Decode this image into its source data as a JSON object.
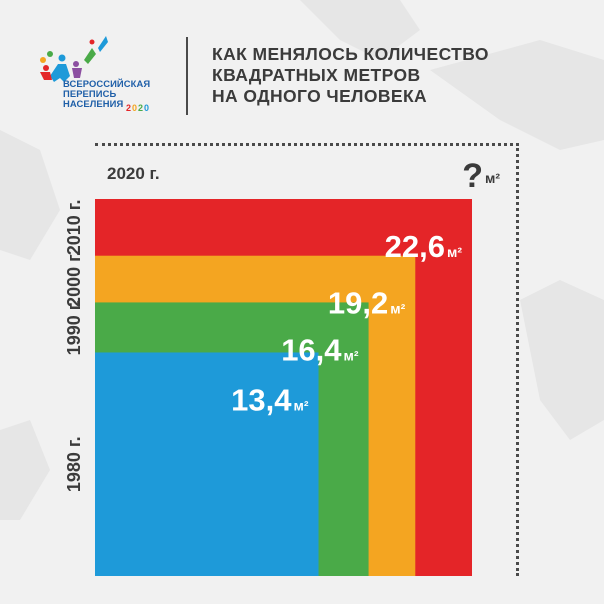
{
  "logo": {
    "lines": [
      "ВСЕРОССИЙСКАЯ",
      "ПЕРЕПИСЬ",
      "НАСЕЛЕНИЯ"
    ],
    "year": "2020"
  },
  "title": {
    "lines": [
      "КАК МЕНЯЛОСЬ КОЛИЧЕСТВО",
      "КВАДРАТНЫХ МЕТРОВ",
      "НА ОДНОГО ЧЕЛОВЕКА"
    ]
  },
  "chart_data": {
    "type": "nested-squares",
    "unit": "м²",
    "series": [
      {
        "year": "1980 г.",
        "value": 13.4,
        "label": "13,4",
        "color": "#1e9ad9"
      },
      {
        "year": "1990 г.",
        "value": 16.4,
        "label": "16,4",
        "color": "#4aaa48"
      },
      {
        "year": "2000 г.",
        "value": 19.2,
        "label": "19,2",
        "color": "#f4a521"
      },
      {
        "year": "2010 г.",
        "value": 22.6,
        "label": "22,6",
        "color": "#e42528"
      }
    ],
    "unknown": {
      "year": "2020 г.",
      "label": "?"
    }
  }
}
